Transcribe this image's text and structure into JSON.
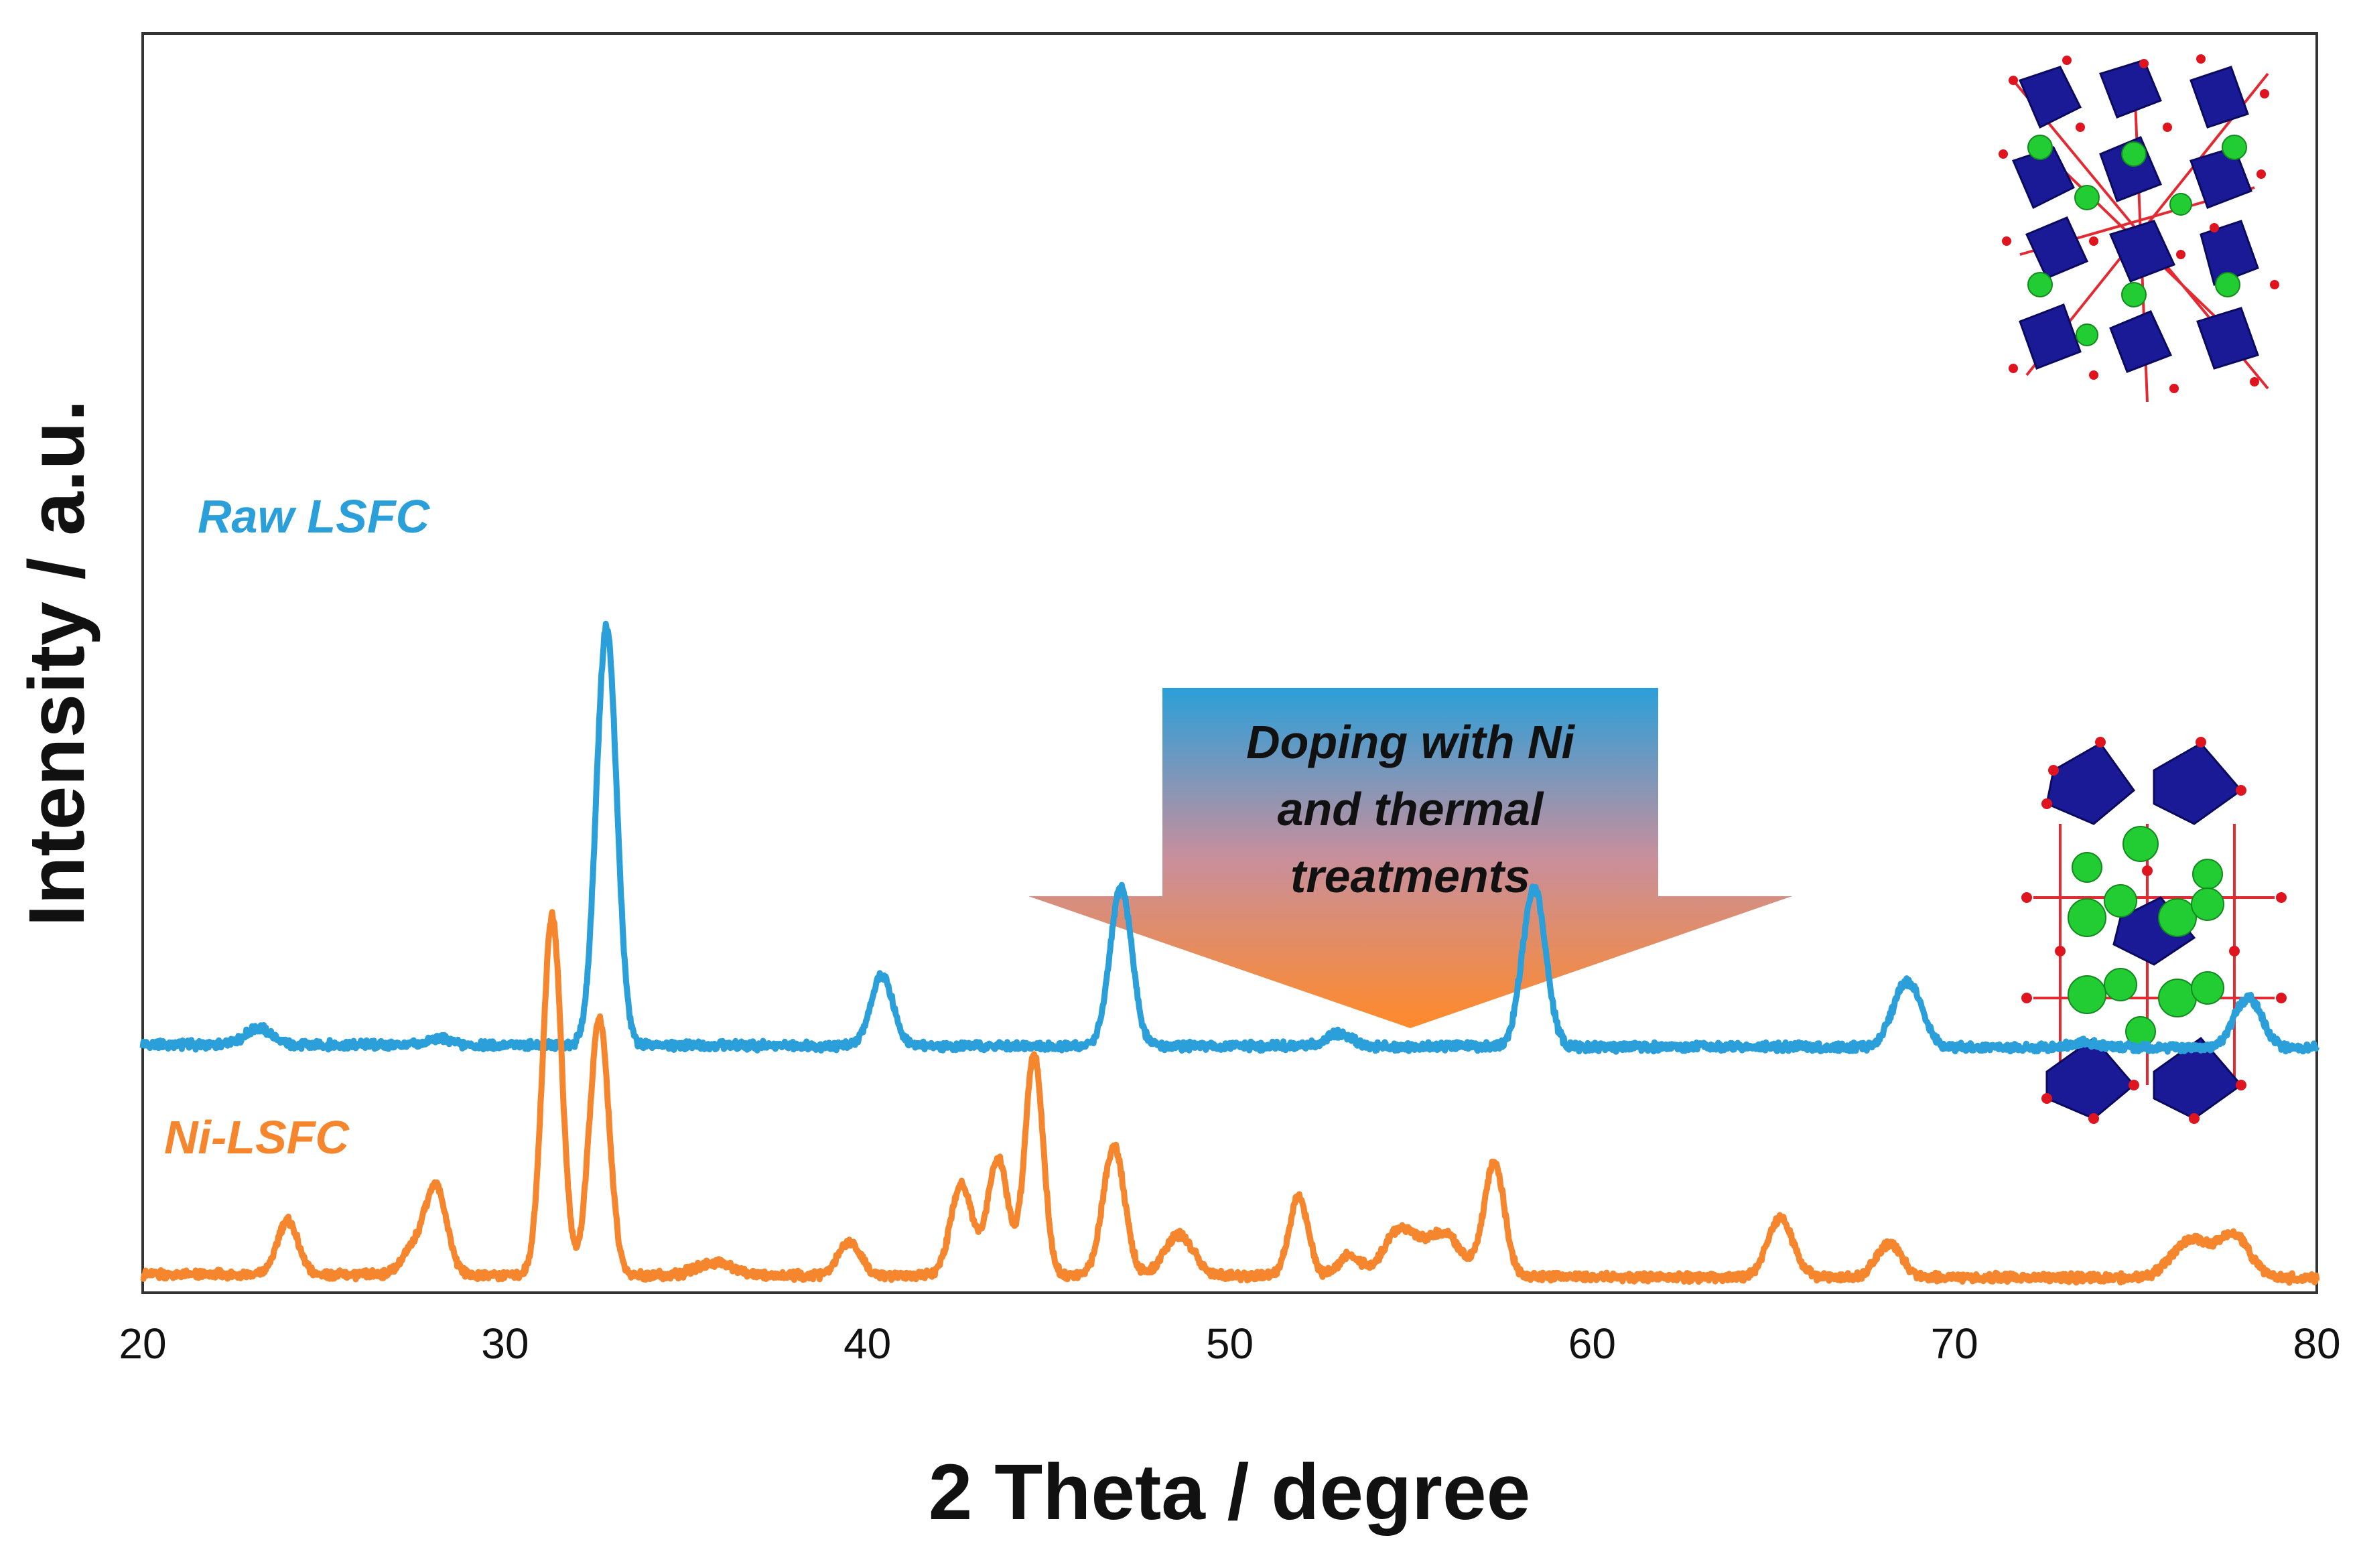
{
  "chart_data": {
    "type": "line",
    "title": "",
    "xlabel": "2 Theta / degree",
    "ylabel": "Intensity / a.u.",
    "xlim": [
      20,
      80
    ],
    "x_ticks": [
      20,
      30,
      40,
      50,
      60,
      70,
      80
    ],
    "yticks_shown": false,
    "grid": false,
    "series": [
      {
        "name": "Raw LSFC",
        "color": "#2b9fd9",
        "baseline": 0.06,
        "offset": 55,
        "peaks": [
          {
            "x": 23.2,
            "height": 4,
            "width": 0.35
          },
          {
            "x": 28.2,
            "height": 1.5,
            "width": 0.3
          },
          {
            "x": 32.8,
            "height": 100,
            "width": 0.28
          },
          {
            "x": 40.4,
            "height": 17,
            "width": 0.3
          },
          {
            "x": 47.0,
            "height": 38,
            "width": 0.3
          },
          {
            "x": 53.0,
            "height": 3,
            "width": 0.35
          },
          {
            "x": 58.4,
            "height": 38,
            "width": 0.32
          },
          {
            "x": 68.6,
            "height": 13,
            "width": 0.35
          },
          {
            "x": 69.0,
            "height": 5,
            "width": 0.3
          },
          {
            "x": 73.6,
            "height": 1,
            "width": 0.4
          },
          {
            "x": 78.1,
            "height": 12,
            "width": 0.38
          }
        ]
      },
      {
        "name": "Ni-LSFC",
        "color": "#f5862d",
        "baseline": 0,
        "offset": 0,
        "peaks": [
          {
            "x": 24.0,
            "height": 13,
            "width": 0.28
          },
          {
            "x": 27.5,
            "height": 6,
            "width": 0.35
          },
          {
            "x": 28.1,
            "height": 20,
            "width": 0.3
          },
          {
            "x": 31.3,
            "height": 86,
            "width": 0.26
          },
          {
            "x": 32.6,
            "height": 61,
            "width": 0.27
          },
          {
            "x": 35.8,
            "height": 3,
            "width": 0.5
          },
          {
            "x": 39.5,
            "height": 8,
            "width": 0.3
          },
          {
            "x": 42.6,
            "height": 22,
            "width": 0.3
          },
          {
            "x": 43.6,
            "height": 28,
            "width": 0.28
          },
          {
            "x": 44.6,
            "height": 53,
            "width": 0.25
          },
          {
            "x": 46.8,
            "height": 31,
            "width": 0.3
          },
          {
            "x": 48.6,
            "height": 10,
            "width": 0.4
          },
          {
            "x": 51.9,
            "height": 19,
            "width": 0.26
          },
          {
            "x": 53.3,
            "height": 5,
            "width": 0.3
          },
          {
            "x": 54.7,
            "height": 11,
            "width": 0.45
          },
          {
            "x": 55.9,
            "height": 10,
            "width": 0.5
          },
          {
            "x": 57.3,
            "height": 27,
            "width": 0.28
          },
          {
            "x": 65.2,
            "height": 14,
            "width": 0.35
          },
          {
            "x": 68.2,
            "height": 8,
            "width": 0.35
          },
          {
            "x": 76.5,
            "height": 9,
            "width": 0.5
          },
          {
            "x": 77.7,
            "height": 10,
            "width": 0.45
          }
        ]
      }
    ],
    "annotations": {
      "arrow_text": [
        "Doping with Ni",
        "and thermal",
        "treatments"
      ],
      "arrow_gradient": [
        "#2b9fd9",
        "#ff8a2a"
      ],
      "inset_structures": [
        "raw-lsfc-crystal-structure",
        "ni-lsfc-crystal-structure"
      ],
      "atom_colors": {
        "octahedra": "#1a1a96",
        "cation": "#22cc33",
        "oxygen": "#e0141e"
      }
    }
  }
}
